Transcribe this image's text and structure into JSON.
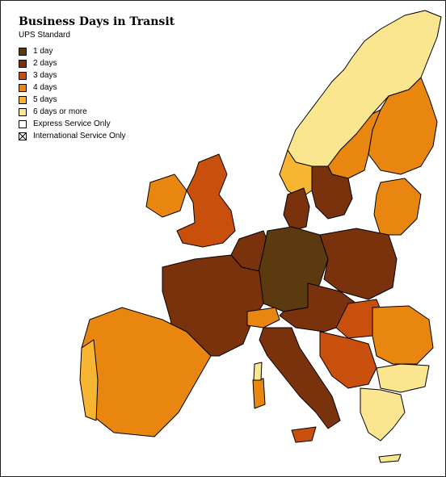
{
  "map": {
    "title": "Business Days in Transit",
    "subtitle": "UPS Standard",
    "colors": {
      "1_day": "#5a3a0e",
      "2_days": "#7a320d",
      "3_days": "#c8500c",
      "4_days": "#e8860f",
      "5_days": "#f7b531",
      "6_days": "#fbe690",
      "express": "#ffffff",
      "sea": "#ffffff",
      "border": "#000000"
    },
    "legend": [
      {
        "label": "1 day",
        "color": "#5a3a0e",
        "pattern": "solid"
      },
      {
        "label": "2 days",
        "color": "#7a320d",
        "pattern": "solid"
      },
      {
        "label": "3 days",
        "color": "#c8500c",
        "pattern": "solid"
      },
      {
        "label": "4 days",
        "color": "#e8860f",
        "pattern": "solid"
      },
      {
        "label": "5 days",
        "color": "#f7b531",
        "pattern": "solid"
      },
      {
        "label": "6 days or more",
        "color": "#fbe690",
        "pattern": "solid"
      },
      {
        "label": "Express Service Only",
        "color": "#ffffff",
        "pattern": "solid"
      },
      {
        "label": "International Service Only",
        "color": "#ffffff",
        "pattern": "hatched"
      }
    ]
  }
}
